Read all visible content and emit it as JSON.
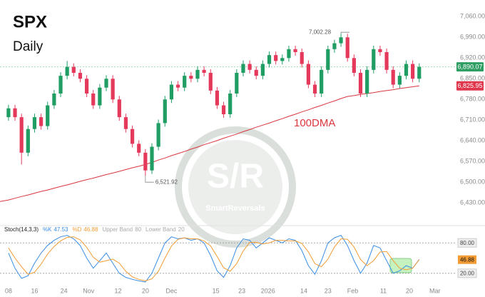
{
  "chart_data": [
    {
      "type": "candlestick",
      "title": "SPX",
      "subtitle": "Daily",
      "xlim": [
        -1.3,
        67.4
      ],
      "ylim": [
        6380,
        7080
      ],
      "yticks": [
        {
          "value": 6430,
          "label": "6,430.00"
        },
        {
          "value": 6500,
          "label": "6,500.00"
        },
        {
          "value": 6570,
          "label": "6,570.00"
        },
        {
          "value": 6640,
          "label": "6,640.00"
        },
        {
          "value": 6710,
          "label": "6,710.00"
        },
        {
          "value": 6780,
          "label": "6,780.00"
        },
        {
          "value": 6850,
          "label": "6,850.00"
        },
        {
          "value": 6920,
          "label": "6,920.00"
        },
        {
          "value": 6990,
          "label": "6,990.00"
        },
        {
          "value": 7060,
          "label": "7,060.00"
        }
      ],
      "up_color": "#1f9d63",
      "down_color": "#e5395c",
      "open": [
        6720,
        6750,
        6720,
        6600,
        6680,
        6720,
        6690,
        6760,
        6800,
        6860,
        6890,
        6870,
        6850,
        6800,
        6760,
        6820,
        6850,
        6780,
        6720,
        6680,
        6630,
        6600,
        6540,
        6620,
        6700,
        6780,
        6830,
        6820,
        6860,
        6850,
        6880,
        6870,
        6810,
        6760,
        6730,
        6800,
        6870,
        6900,
        6880,
        6860,
        6900,
        6930,
        6910,
        6920,
        6950,
        6940,
        6900,
        6830,
        6800,
        6880,
        6950,
        6970,
        6990,
        6920,
        6870,
        6800,
        6880,
        6950,
        6940,
        6880,
        6830,
        6860,
        6900,
        6850
      ],
      "high": [
        6762,
        6762,
        6732,
        6692,
        6732,
        6732,
        6772,
        6812,
        6872,
        6910,
        6902,
        6882,
        6862,
        6812,
        6832,
        6862,
        6862,
        6792,
        6732,
        6692,
        6642,
        6612,
        6632,
        6712,
        6792,
        6842,
        6842,
        6872,
        6872,
        6892,
        6892,
        6882,
        6822,
        6772,
        6812,
        6882,
        6912,
        6912,
        6892,
        6912,
        6942,
        6942,
        6932,
        6962,
        6962,
        6952,
        6912,
        6842,
        6892,
        6962,
        6982,
        7002.28,
        7002,
        6932,
        6882,
        6892,
        6962,
        6962,
        6952,
        6892,
        6872,
        6912,
        6912,
        6902
      ],
      "low": [
        6708,
        6708,
        6560,
        6588,
        6668,
        6678,
        6678,
        6748,
        6788,
        6848,
        6858,
        6838,
        6788,
        6748,
        6748,
        6808,
        6768,
        6708,
        6668,
        6618,
        6588,
        6521.92,
        6528,
        6608,
        6688,
        6768,
        6808,
        6808,
        6838,
        6838,
        6858,
        6798,
        6748,
        6718,
        6718,
        6788,
        6858,
        6868,
        6848,
        6848,
        6888,
        6898,
        6898,
        6908,
        6928,
        6888,
        6818,
        6788,
        6788,
        6868,
        6938,
        6958,
        6908,
        6858,
        6788,
        6788,
        6868,
        6928,
        6868,
        6818,
        6818,
        6848,
        6838,
        6838
      ],
      "close": [
        6750,
        6720,
        6600,
        6680,
        6720,
        6690,
        6760,
        6800,
        6860,
        6890,
        6870,
        6850,
        6800,
        6760,
        6820,
        6850,
        6780,
        6720,
        6680,
        6630,
        6600,
        6540,
        6620,
        6700,
        6780,
        6830,
        6820,
        6860,
        6850,
        6880,
        6870,
        6810,
        6760,
        6730,
        6800,
        6870,
        6900,
        6880,
        6860,
        6900,
        6930,
        6910,
        6920,
        6950,
        6940,
        6900,
        6830,
        6800,
        6880,
        6950,
        6970,
        6990,
        6920,
        6870,
        6800,
        6880,
        6950,
        6940,
        6880,
        6830,
        6860,
        6900,
        6850,
        6890.07
      ],
      "series": [
        {
          "name": "100DMA",
          "color": "#d9363e",
          "values": [
            6440,
            6446,
            6452,
            6457,
            6463,
            6469,
            6474,
            6480,
            6486,
            6491,
            6497,
            6503,
            6509,
            6514,
            6520,
            6526,
            6531,
            6537,
            6543,
            6549,
            6554,
            6560,
            6567,
            6575,
            6582,
            6590,
            6597,
            6604,
            6612,
            6619,
            6627,
            6634,
            6641,
            6649,
            6656,
            6663,
            6671,
            6678,
            6686,
            6693,
            6700,
            6708,
            6715,
            6723,
            6730,
            6738,
            6745,
            6753,
            6760,
            6768,
            6775,
            6783,
            6790,
            6793,
            6797,
            6800,
            6803,
            6807,
            6810,
            6813,
            6817,
            6820,
            6823,
            6825.95
          ]
        }
      ],
      "annotations": [
        {
          "x": 51,
          "value": 7002.28,
          "label": "7,002.28"
        },
        {
          "x": 21,
          "value": 6521.92,
          "label": "6,521.92"
        },
        {
          "value": 6890.07,
          "label": "6,890.07",
          "color": "#2e9e62"
        },
        {
          "value": 6825.95,
          "label": "6,825.95",
          "color": "#e0364c"
        }
      ],
      "watermark": {
        "logo": "S/R",
        "name": "SmartReversals"
      }
    },
    {
      "type": "line",
      "title": "Stoch(14,3,3)",
      "xlim": [
        -1.3,
        67.4
      ],
      "ylim": [
        0,
        100
      ],
      "yticks": [
        {
          "value": 20,
          "label": "20.00"
        },
        {
          "value": 80,
          "label": "80.00"
        }
      ],
      "bands": [
        {
          "name": "Upper Band",
          "value": 80
        },
        {
          "name": "Lower Band",
          "value": 20
        }
      ],
      "xticks": [
        {
          "value": 0,
          "label": "08"
        },
        {
          "value": 4,
          "label": "16"
        },
        {
          "value": 8.5,
          "label": "24"
        },
        {
          "value": 12.3,
          "label": "Nov"
        },
        {
          "value": 16.8,
          "label": "12"
        },
        {
          "value": 21,
          "label": "20"
        },
        {
          "value": 25,
          "label": "Dec"
        },
        {
          "value": 31.8,
          "label": "15"
        },
        {
          "value": 35.8,
          "label": "23"
        },
        {
          "value": 39.8,
          "label": "2026"
        },
        {
          "value": 45.3,
          "label": "14"
        },
        {
          "value": 49,
          "label": "23"
        },
        {
          "value": 52.8,
          "label": "Feb"
        },
        {
          "value": 57.5,
          "label": "11"
        },
        {
          "value": 61.5,
          "label": "20"
        },
        {
          "value": 65.4,
          "label": "Mar"
        }
      ],
      "series": [
        {
          "name": "%K",
          "color": "#3a8ee6",
          "values": [
            60,
            30,
            10,
            15,
            40,
            60,
            75,
            85,
            92,
            95,
            88,
            75,
            50,
            30,
            45,
            60,
            40,
            20,
            12,
            8,
            5,
            3,
            20,
            50,
            80,
            92,
            88,
            90,
            85,
            88,
            80,
            55,
            25,
            12,
            35,
            70,
            88,
            85,
            70,
            80,
            90,
            85,
            80,
            88,
            85,
            65,
            35,
            18,
            45,
            80,
            90,
            95,
            75,
            45,
            20,
            40,
            75,
            70,
            45,
            20,
            25,
            35,
            30,
            47.53
          ]
        },
        {
          "name": "%D",
          "color": "#f39c34",
          "values": [
            70,
            50,
            33,
            18,
            22,
            38,
            58,
            73,
            84,
            91,
            92,
            86,
            71,
            52,
            42,
            45,
            48,
            40,
            24,
            13,
            8,
            5,
            9,
            24,
            50,
            74,
            87,
            90,
            88,
            88,
            84,
            74,
            53,
            31,
            24,
            39,
            64,
            81,
            81,
            78,
            80,
            85,
            85,
            84,
            84,
            79,
            62,
            39,
            33,
            48,
            72,
            88,
            87,
            72,
            47,
            35,
            45,
            62,
            63,
            45,
            30,
            27,
            30,
            46.88
          ]
        }
      ]
    }
  ]
}
